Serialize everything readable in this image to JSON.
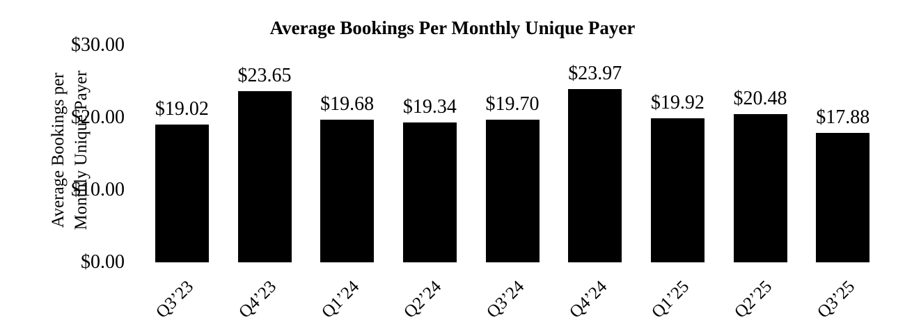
{
  "figure": {
    "background": "#ffffff",
    "text_color": "#000000"
  },
  "chart_data": {
    "type": "bar",
    "title": "Average Bookings Per Monthly Unique Payer",
    "ylabel_lines": [
      "Average Bookings per",
      "Monthly Unique Payer"
    ],
    "xlabel": "",
    "categories": [
      "Q3’23",
      "Q4’23",
      "Q1’24",
      "Q2’24",
      "Q3’24",
      "Q4’24",
      "Q1’25",
      "Q2’25",
      "Q3’25"
    ],
    "values": [
      19.02,
      23.65,
      19.68,
      19.34,
      19.7,
      23.97,
      19.92,
      20.48,
      17.88
    ],
    "value_labels": [
      "$19.02",
      "$23.65",
      "$19.68",
      "$19.34",
      "$19.70",
      "$23.97",
      "$19.92",
      "$20.48",
      "$17.88"
    ],
    "y_ticks": [
      {
        "label": "$30.00",
        "value": 30
      },
      {
        "label": "$20.00",
        "value": 20
      },
      {
        "label": "$10.00",
        "value": 10
      },
      {
        "label": "$0.00",
        "value": 0
      }
    ],
    "ylim": [
      0,
      30
    ],
    "bar_color": "#000000",
    "grid": false,
    "legend": false,
    "x_tick_rotation_deg": 45
  }
}
